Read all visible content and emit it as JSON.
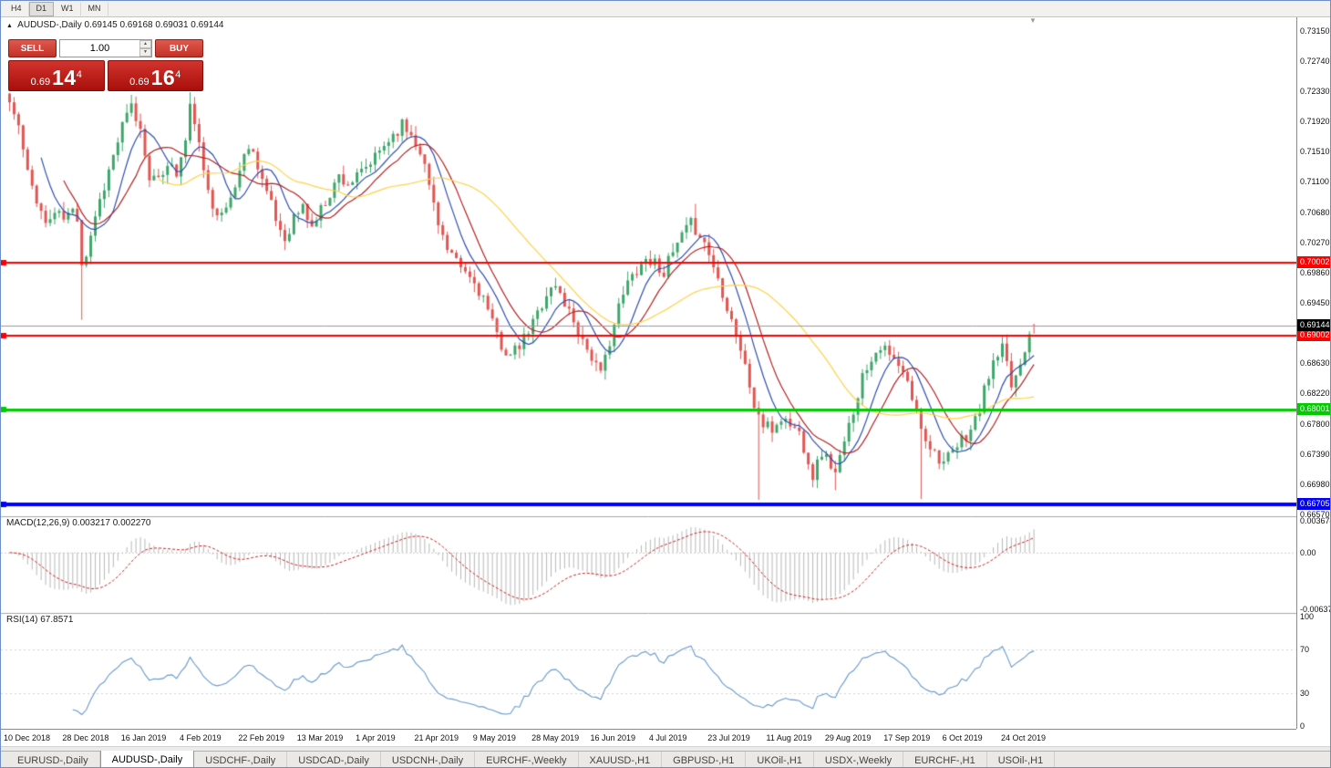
{
  "topbar": {
    "timeframes": [
      {
        "label": "H4",
        "active": false
      },
      {
        "label": "D1",
        "active": true
      },
      {
        "label": "W1",
        "active": false
      },
      {
        "label": "MN",
        "active": false
      }
    ]
  },
  "chart": {
    "symbol_ohlc": "AUDUSD-,Daily  0.69145 0.69168 0.69031 0.69144"
  },
  "trade_panel": {
    "sell_label": "SELL",
    "buy_label": "BUY",
    "volume": "1.00",
    "sell_price": {
      "prefix": "0.69",
      "big": "14",
      "sup": "4"
    },
    "buy_price": {
      "prefix": "0.69",
      "big": "16",
      "sup": "4"
    }
  },
  "icons": {
    "volume_up": "▲",
    "volume_down": "▼",
    "symbol_marker": "▲",
    "shift_marker": "▼"
  },
  "macd": {
    "label": "MACD(12,26,9)",
    "values": "0.003217 0.002270",
    "axis": [
      "0.003674",
      "0.00",
      "-0.006378"
    ]
  },
  "rsi": {
    "label": "RSI(14) 67.8571",
    "axis": [
      "100",
      "70",
      "30",
      "0"
    ]
  },
  "date_axis": [
    "10 Dec 2018",
    "28 Dec 2018",
    "16 Jan 2019",
    "4 Feb 2019",
    "22 Feb 2019",
    "13 Mar 2019",
    "1 Apr 2019",
    "21 Apr 2019",
    "9 May 2019",
    "28 May 2019",
    "16 Jun 2019",
    "4 Jul 2019",
    "23 Jul 2019",
    "11 Aug 2019",
    "29 Aug 2019",
    "17 Sep 2019",
    "6 Oct 2019",
    "24 Oct 2019"
  ],
  "tabs": [
    {
      "label": "EURUSD-,Daily",
      "active": false
    },
    {
      "label": "AUDUSD-,Daily",
      "active": true
    },
    {
      "label": "USDCHF-,Daily",
      "active": false
    },
    {
      "label": "USDCAD-,Daily",
      "active": false
    },
    {
      "label": "USDCNH-,Daily",
      "active": false
    },
    {
      "label": "EURCHF-,Weekly",
      "active": false
    },
    {
      "label": "XAUUSD-,H1",
      "active": false
    },
    {
      "label": "GBPUSD-,H1",
      "active": false
    },
    {
      "label": "UKOil-,H1",
      "active": false
    },
    {
      "label": "USDX-,Weekly",
      "active": false
    },
    {
      "label": "EURCHF-,H1",
      "active": false
    },
    {
      "label": "USOil-,H1",
      "active": false
    }
  ],
  "colors": {
    "candle_up": "#3FA66A",
    "candle_down": "#E25552",
    "ma_fast": "#2E4FB0",
    "ma_mid": "#B22222",
    "ma_slow": "#FFD24A",
    "current_price_line": "#9A9A9A",
    "current_tag_bg": "#000000",
    "macd_hist": "#B8B8B8",
    "macd_signal": "#CC2222",
    "rsi_line": "#6699CC",
    "button_red": "#C23228",
    "button_red_light": "#E0584E",
    "price_box_red": "#A80F0B",
    "price_box_red_light": "#D2332D"
  },
  "chart_data": {
    "type": "candlestick",
    "symbol": "AUDUSD-",
    "timeframe": "Daily",
    "current_ohlc": {
      "open": 0.69145,
      "high": 0.69168,
      "low": 0.69031,
      "close": 0.69144
    },
    "bars": 228,
    "price_scale": {
      "top": 0.7334,
      "bottom": 0.66545
    },
    "price_ticks": [
      0.7315,
      0.7274,
      0.7233,
      0.7192,
      0.7151,
      0.711,
      0.7068,
      0.7027,
      0.6986,
      0.6945,
      0.6863,
      0.6822,
      0.678,
      0.6739,
      0.6698,
      0.6657
    ],
    "horizontal_levels": [
      {
        "price": 0.70002,
        "label": "0.70002",
        "color": "#FF0000",
        "width": 2
      },
      {
        "price": 0.69002,
        "label": "0.69002",
        "color": "#FF0000",
        "width": 2
      },
      {
        "price": 0.68001,
        "label": "0.68001",
        "color": "#00CC00",
        "width": 3
      },
      {
        "price": 0.66705,
        "label": "0.66705",
        "color": "#0000FF",
        "width": 4
      }
    ],
    "current_price": {
      "price": 0.69144,
      "label": "0.69144"
    },
    "moving_averages": [
      {
        "period": 8,
        "color_key": "ma_fast"
      },
      {
        "period": 13,
        "color_key": "ma_mid"
      },
      {
        "period": 34,
        "color_key": "ma_slow"
      }
    ],
    "macd_params": [
      12,
      26,
      9
    ],
    "macd_range": {
      "max": 0.003674,
      "min": -0.006378
    },
    "macd_axis_values": [
      0.003674,
      0,
      -0.006378
    ],
    "rsi_period": 14,
    "rsi_range": [
      0,
      100
    ],
    "rsi_axis_values": [
      100,
      70,
      30,
      0
    ],
    "rsi_levels": [
      70,
      30
    ],
    "date_label_every": 13,
    "price_path_anchors": [
      [
        0,
        0.7218
      ],
      [
        2,
        0.7185
      ],
      [
        4,
        0.712
      ],
      [
        6,
        0.7088
      ],
      [
        8,
        0.7052
      ],
      [
        10,
        0.7068
      ],
      [
        12,
        0.706
      ],
      [
        14,
        0.707
      ],
      [
        15,
        0.7062
      ],
      [
        16,
        0.7002
      ],
      [
        17,
        0.7012
      ],
      [
        19,
        0.7065
      ],
      [
        21,
        0.7105
      ],
      [
        23,
        0.7145
      ],
      [
        25,
        0.7185
      ],
      [
        27,
        0.7212
      ],
      [
        29,
        0.718
      ],
      [
        31,
        0.712
      ],
      [
        33,
        0.7108
      ],
      [
        35,
        0.7138
      ],
      [
        37,
        0.712
      ],
      [
        39,
        0.7165
      ],
      [
        40,
        0.721
      ],
      [
        41,
        0.7195
      ],
      [
        43,
        0.712
      ],
      [
        45,
        0.7082
      ],
      [
        47,
        0.7062
      ],
      [
        49,
        0.7088
      ],
      [
        51,
        0.7125
      ],
      [
        53,
        0.7162
      ],
      [
        55,
        0.7135
      ],
      [
        57,
        0.7095
      ],
      [
        59,
        0.7058
      ],
      [
        61,
        0.7032
      ],
      [
        63,
        0.7062
      ],
      [
        65,
        0.7075
      ],
      [
        67,
        0.7048
      ],
      [
        69,
        0.7072
      ],
      [
        71,
        0.7095
      ],
      [
        73,
        0.7118
      ],
      [
        75,
        0.7108
      ],
      [
        77,
        0.7115
      ],
      [
        79,
        0.7128
      ],
      [
        81,
        0.7142
      ],
      [
        83,
        0.716
      ],
      [
        85,
        0.7175
      ],
      [
        87,
        0.7188
      ],
      [
        89,
        0.7175
      ],
      [
        91,
        0.7155
      ],
      [
        93,
        0.7105
      ],
      [
        95,
        0.7058
      ],
      [
        97,
        0.7015
      ],
      [
        99,
        0.6998
      ],
      [
        101,
        0.6986
      ],
      [
        103,
        0.6972
      ],
      [
        105,
        0.6952
      ],
      [
        107,
        0.6915
      ],
      [
        109,
        0.6888
      ],
      [
        111,
        0.6872
      ],
      [
        113,
        0.6885
      ],
      [
        115,
        0.6905
      ],
      [
        117,
        0.6932
      ],
      [
        119,
        0.6958
      ],
      [
        121,
        0.6968
      ],
      [
        123,
        0.6945
      ],
      [
        125,
        0.6922
      ],
      [
        127,
        0.6895
      ],
      [
        129,
        0.6872
      ],
      [
        131,
        0.6845
      ],
      [
        133,
        0.6895
      ],
      [
        135,
        0.6938
      ],
      [
        137,
        0.6972
      ],
      [
        139,
        0.6992
      ],
      [
        141,
        0.7005
      ],
      [
        143,
        0.7
      ],
      [
        145,
        0.6988
      ],
      [
        147,
        0.7012
      ],
      [
        149,
        0.7035
      ],
      [
        151,
        0.7052
      ],
      [
        153,
        0.704
      ],
      [
        155,
        0.7012
      ],
      [
        157,
        0.6978
      ],
      [
        159,
        0.6942
      ],
      [
        161,
        0.6905
      ],
      [
        163,
        0.6858
      ],
      [
        165,
        0.6805
      ],
      [
        167,
        0.6778
      ],
      [
        169,
        0.6772
      ],
      [
        171,
        0.6788
      ],
      [
        173,
        0.678
      ],
      [
        175,
        0.6768
      ],
      [
        177,
        0.6732
      ],
      [
        178,
        0.671
      ],
      [
        180,
        0.6742
      ],
      [
        182,
        0.6725
      ],
      [
        183,
        0.6712
      ],
      [
        185,
        0.6752
      ],
      [
        187,
        0.68
      ],
      [
        189,
        0.6845
      ],
      [
        191,
        0.6872
      ],
      [
        193,
        0.6888
      ],
      [
        195,
        0.6872
      ],
      [
        197,
        0.6858
      ],
      [
        199,
        0.6835
      ],
      [
        201,
        0.6795
      ],
      [
        203,
        0.6762
      ],
      [
        205,
        0.6742
      ],
      [
        207,
        0.6728
      ],
      [
        209,
        0.6738
      ],
      [
        211,
        0.6758
      ],
      [
        213,
        0.6772
      ],
      [
        215,
        0.68
      ],
      [
        217,
        0.6848
      ],
      [
        219,
        0.6872
      ],
      [
        220,
        0.6882
      ],
      [
        222,
        0.6832
      ],
      [
        224,
        0.6862
      ],
      [
        226,
        0.6908
      ],
      [
        227,
        0.69144
      ]
    ],
    "wick_overrides": {
      "16": {
        "open": 0.7058,
        "low": 0.6922
      },
      "40": {
        "high": 0.7232
      },
      "152": {
        "high": 0.708
      },
      "166": {
        "low": 0.6677
      },
      "178": {
        "low": 0.6694
      },
      "183": {
        "low": 0.669
      },
      "202": {
        "low": 0.6678
      }
    }
  }
}
